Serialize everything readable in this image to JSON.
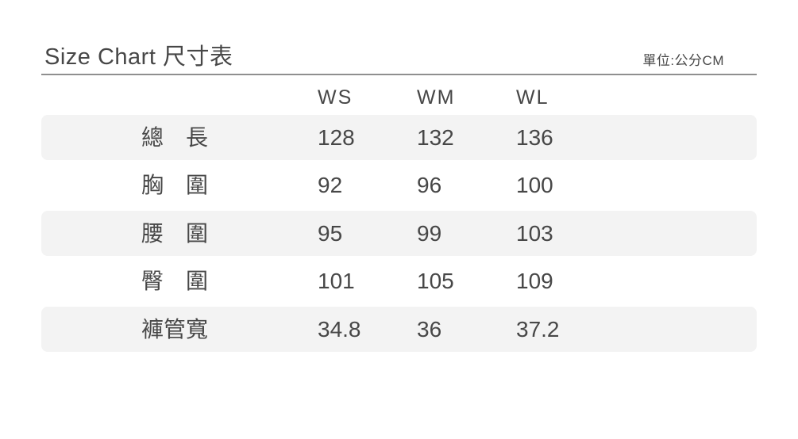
{
  "header": {
    "title": "Size Chart 尺寸表",
    "unit": "單位:公分CM"
  },
  "colors": {
    "text": "#474747",
    "row_shade": "#f3f3f3",
    "divider": "#8f8f8f"
  },
  "chart_data": {
    "type": "table",
    "title": "Size Chart 尺寸表",
    "unit_note": "單位:公分CM",
    "columns": [
      "WS",
      "WM",
      "WL"
    ],
    "rows": [
      {
        "label": "總長",
        "values": [
          "128",
          "132",
          "136"
        ],
        "shaded": true
      },
      {
        "label": "胸圍",
        "values": [
          "92",
          "96",
          "100"
        ],
        "shaded": false
      },
      {
        "label": "腰圍",
        "values": [
          "95",
          "99",
          "103"
        ],
        "shaded": true
      },
      {
        "label": "臀圍",
        "values": [
          "101",
          "105",
          "109"
        ],
        "shaded": false
      },
      {
        "label": "褲管寬",
        "values": [
          "34.8",
          "36",
          "37.2"
        ],
        "shaded": true
      }
    ]
  }
}
